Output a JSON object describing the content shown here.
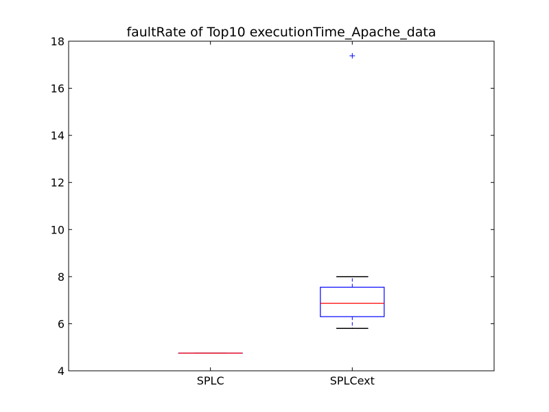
{
  "chart_data": {
    "type": "box",
    "title": "faultRate of Top10 executionTime_Apache_data",
    "xlabel": "",
    "ylabel": "",
    "ylim": [
      4,
      18
    ],
    "yticks": [
      4,
      6,
      8,
      10,
      12,
      14,
      16,
      18
    ],
    "ytick_labels": [
      "4",
      "6",
      "8",
      "10",
      "12",
      "14",
      "16",
      "18"
    ],
    "categories": [
      "SPLC",
      "SPLCext"
    ],
    "boxes": [
      {
        "name": "SPLC",
        "whisker_low": 4.75,
        "q1": 4.75,
        "median": 4.75,
        "q3": 4.75,
        "whisker_high": 4.75,
        "outliers": []
      },
      {
        "name": "SPLCext",
        "whisker_low": 5.8,
        "q1": 6.3,
        "median": 6.87,
        "q3": 7.55,
        "whisker_high": 8.0,
        "outliers": [
          17.38
        ]
      }
    ],
    "colors": {
      "box": "#0000ff",
      "median": "#ff0000",
      "whisker": "#000000",
      "outlier": "#0000ff"
    },
    "grid": false
  }
}
